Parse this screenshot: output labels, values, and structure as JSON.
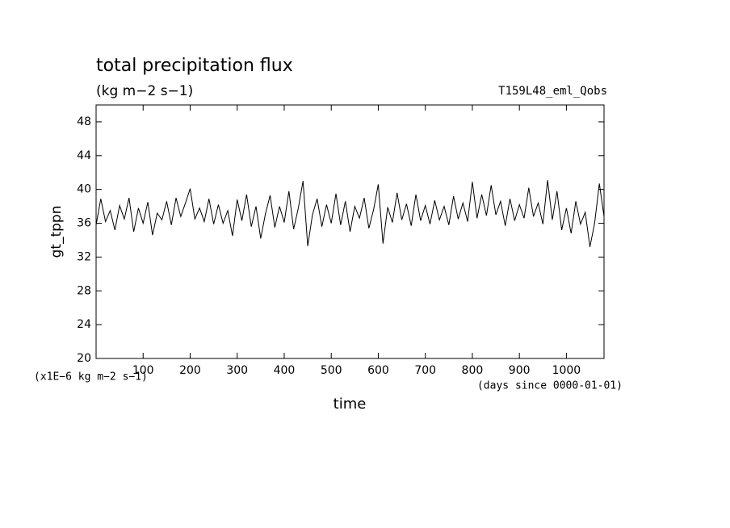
{
  "chart_data": {
    "type": "line",
    "title": "total precipitation flux",
    "subtitle": "(kg m−2 s−1)",
    "annotation": "T159L48_eml_Qobs",
    "y_label": "gt_tppn",
    "y_unit": "(x1E−6 kg m−2 s−1)",
    "x_label": "time",
    "x_unit": "(days since 0000-01-01)",
    "x": [
      0,
      10,
      20,
      30,
      40,
      50,
      60,
      70,
      80,
      90,
      100,
      110,
      120,
      130,
      140,
      150,
      160,
      170,
      180,
      190,
      200,
      210,
      220,
      230,
      240,
      250,
      260,
      270,
      280,
      290,
      300,
      310,
      320,
      330,
      340,
      350,
      360,
      370,
      380,
      390,
      400,
      410,
      420,
      430,
      440,
      450,
      460,
      470,
      480,
      490,
      500,
      510,
      520,
      530,
      540,
      550,
      560,
      570,
      580,
      590,
      600,
      610,
      620,
      630,
      640,
      650,
      660,
      670,
      680,
      690,
      700,
      710,
      720,
      730,
      740,
      750,
      760,
      770,
      780,
      790,
      800,
      810,
      820,
      830,
      840,
      850,
      860,
      870,
      880,
      890,
      900,
      910,
      920,
      930,
      940,
      950,
      960,
      970,
      980,
      990,
      1000,
      1010,
      1020,
      1030,
      1040,
      1050,
      1060,
      1070,
      1080
    ],
    "series": [
      {
        "name": "gt_tppn",
        "color": "#000000",
        "values": [
          35.8,
          38.9,
          36.2,
          37.5,
          35.2,
          38.1,
          36.5,
          39.0,
          35.0,
          37.8,
          36.0,
          38.5,
          34.6,
          37.2,
          36.4,
          38.6,
          35.8,
          39.0,
          36.8,
          38.4,
          40.1,
          36.5,
          37.8,
          36.2,
          38.9,
          35.9,
          38.2,
          36.0,
          37.5,
          34.5,
          38.8,
          36.3,
          39.4,
          35.6,
          38.0,
          34.2,
          37.1,
          39.3,
          35.5,
          38.0,
          36.1,
          39.8,
          35.3,
          37.8,
          41.0,
          33.3,
          37.0,
          38.9,
          35.6,
          38.2,
          36.0,
          39.5,
          35.8,
          38.6,
          35.0,
          38.0,
          36.6,
          39.0,
          35.4,
          37.6,
          40.6,
          33.6,
          37.9,
          36.1,
          39.6,
          36.4,
          38.3,
          35.7,
          39.4,
          36.3,
          38.1,
          35.9,
          38.7,
          36.4,
          38.0,
          35.8,
          39.2,
          36.5,
          38.4,
          36.2,
          40.9,
          36.6,
          39.4,
          36.9,
          40.5,
          37.0,
          38.6,
          35.7,
          38.9,
          36.3,
          38.2,
          36.6,
          40.2,
          36.8,
          38.4,
          35.9,
          41.1,
          36.4,
          39.8,
          35.2,
          37.8,
          34.8,
          38.6,
          35.9,
          37.3,
          33.2,
          36.0,
          40.7,
          36.8
        ]
      }
    ],
    "xlim": [
      0,
      1080
    ],
    "xticks": [
      100,
      200,
      300,
      400,
      500,
      600,
      700,
      800,
      900,
      1000
    ],
    "ylim": [
      20,
      50
    ],
    "yticks": [
      20,
      24,
      28,
      32,
      36,
      40,
      44,
      48
    ]
  }
}
